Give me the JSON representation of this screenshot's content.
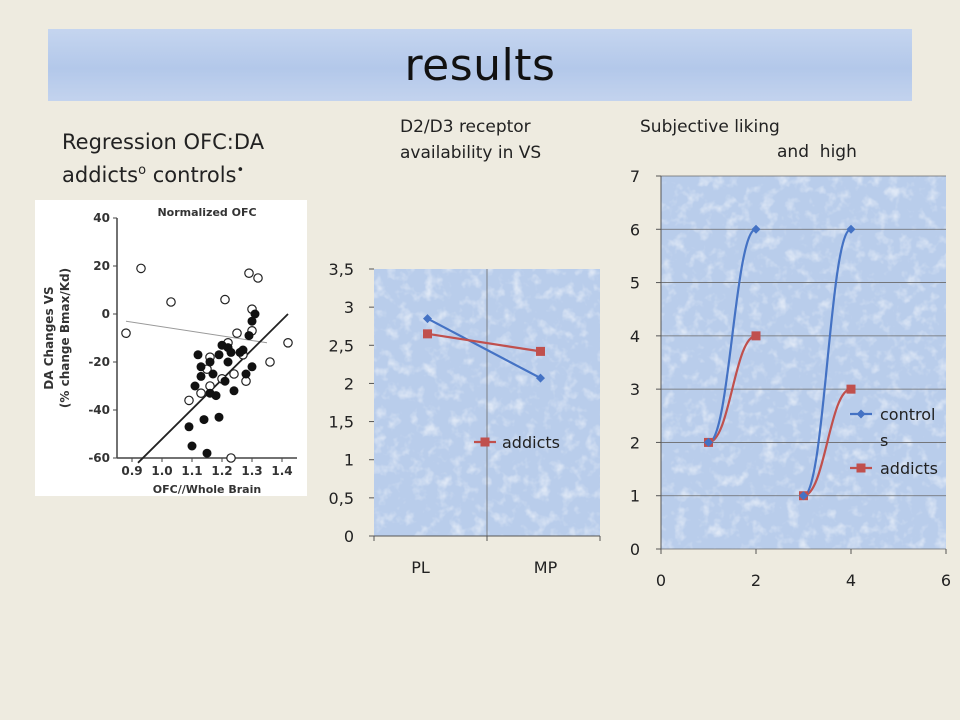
{
  "slide": {
    "title": "results",
    "left_caption": {
      "line1": "Regression OFC:DA",
      "line2_a": "addicts",
      "line2_b": "o",
      "line2_c": " controls",
      "line2_d": "•"
    },
    "middle_caption": [
      "D2/D3 receptor",
      "availability in VS"
    ],
    "right_caption": [
      "Subjective liking",
      "and  high"
    ]
  },
  "chart_data": [
    {
      "type": "scatter",
      "title": "Normalized OFC",
      "xlabel": "OFC//Whole Brain",
      "ylabel": "DA Changes VS",
      "ylabel2": "(% change Bmax/Kd)",
      "xlim": [
        0.85,
        1.45
      ],
      "ylim": [
        -60,
        40
      ],
      "x_ticks": [
        "0.9",
        "1.0",
        "1.1",
        "1.2",
        "1.3",
        "1.4"
      ],
      "y_ticks": [
        "40",
        "20",
        "0",
        "-20",
        "-40",
        "-60"
      ],
      "series": [
        {
          "marker": "open",
          "x": [
            0.88,
            0.93,
            1.03,
            1.15,
            1.16,
            1.2,
            1.21,
            1.23,
            1.25,
            1.27,
            1.29,
            1.3,
            1.32,
            1.3,
            1.28,
            1.36,
            1.42,
            1.13,
            1.09,
            1.16,
            1.22,
            1.24
          ],
          "y": [
            -8,
            19,
            5,
            -23,
            -18,
            -27,
            6,
            -60,
            -8,
            -17,
            17,
            -7,
            15,
            2,
            -28,
            -20,
            -12,
            -33,
            -36,
            -30,
            -12,
            -25
          ],
          "trend": [
            [
              0.88,
              -3
            ],
            [
              1.35,
              -12
            ]
          ]
        },
        {
          "marker": "filled",
          "x": [
            1.09,
            1.1,
            1.12,
            1.13,
            1.14,
            1.15,
            1.16,
            1.17,
            1.18,
            1.19,
            1.2,
            1.21,
            1.22,
            1.23,
            1.24,
            1.26,
            1.27,
            1.28,
            1.29,
            1.3,
            1.31,
            1.11,
            1.13,
            1.16,
            1.19,
            1.22,
            1.3
          ],
          "y": [
            -47,
            -55,
            -17,
            -26,
            -44,
            -58,
            -20,
            -25,
            -34,
            -17,
            -13,
            -28,
            -14,
            -16,
            -32,
            -16,
            -15,
            -25,
            -9,
            -22,
            0,
            -30,
            -22,
            -33,
            -43,
            -20,
            -3
          ],
          "trend": [
            [
              0.92,
              -62
            ],
            [
              1.42,
              0
            ]
          ]
        }
      ]
    },
    {
      "type": "line",
      "categories": [
        "PL",
        "MP"
      ],
      "ylim": [
        0,
        3.5
      ],
      "y_ticks": [
        "0",
        "0,5",
        "1",
        "1,5",
        "2",
        "2,5",
        "3",
        "3,5"
      ],
      "series": [
        {
          "name": "",
          "color": "#4472c4",
          "marker": "diamond",
          "values": [
            2.85,
            2.07
          ]
        },
        {
          "name": "addicts",
          "color": "#c0504d",
          "marker": "square",
          "values": [
            2.65,
            2.42
          ]
        }
      ],
      "legend": "center-right",
      "grid": true
    },
    {
      "type": "line",
      "xlim": [
        0,
        6
      ],
      "ylim": [
        0,
        7
      ],
      "x_ticks": [
        "0",
        "2",
        "4",
        "6"
      ],
      "y_ticks": [
        "0",
        "1",
        "2",
        "3",
        "4",
        "5",
        "6",
        "7"
      ],
      "series": [
        {
          "name": "controls",
          "legend_lines": [
            "control",
            "s"
          ],
          "color": "#4472c4",
          "marker": "diamond",
          "segments": [
            [
              [
                1,
                2
              ],
              [
                2,
                6
              ]
            ],
            [
              [
                3,
                1
              ],
              [
                4,
                6
              ]
            ]
          ]
        },
        {
          "name": "addicts",
          "legend_lines": [
            "addicts"
          ],
          "color": "#c0504d",
          "marker": "square",
          "segments": [
            [
              [
                1,
                2
              ],
              [
                2,
                4
              ]
            ],
            [
              [
                3,
                1
              ],
              [
                4,
                3
              ]
            ]
          ]
        }
      ],
      "legend": "right",
      "grid": true
    }
  ]
}
